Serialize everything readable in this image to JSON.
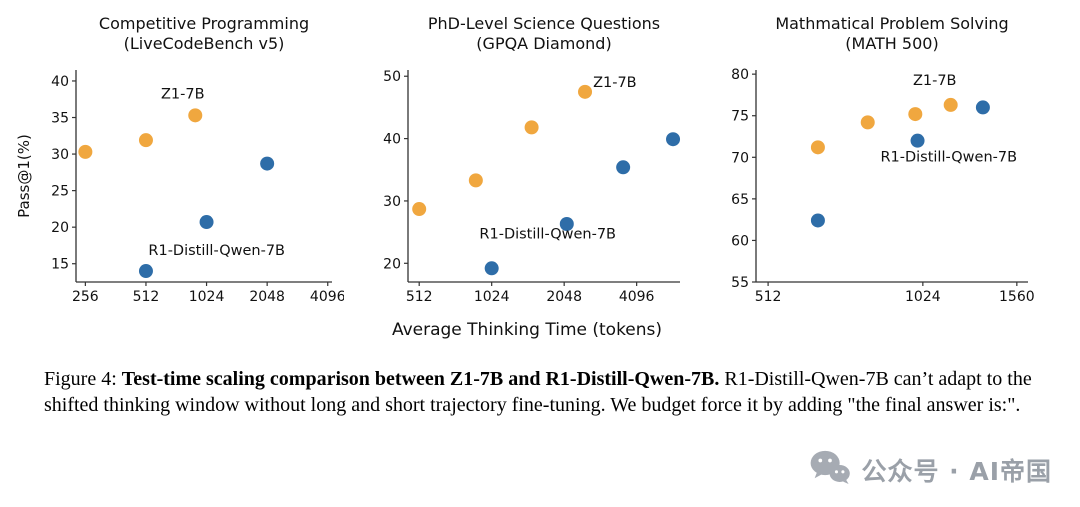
{
  "figure": {
    "xlabel": "Average Thinking Time (tokens)",
    "caption": {
      "label": "Figure 4:",
      "bold": "Test-time scaling comparison between Z1-7B and R1-Distill-Qwen-7B.",
      "rest": "R1-Distill-Qwen-7B can’t adapt to the shifted thinking window without long and short trajectory fine-tuning. We budget force it by adding \"the final answer is:\"."
    },
    "watermark": {
      "icon": "wechat-icon",
      "text": "公众号 · AI帝国"
    }
  },
  "colors": {
    "z1": "#F0A73F",
    "r1": "#2E6DA8",
    "axis": "#333333",
    "text": "#111111",
    "watermark": "#A6ABB3"
  },
  "chart_data": [
    {
      "type": "scatter",
      "title_lines": [
        "Competitive Programming",
        "(LiveCodeBench v5)"
      ],
      "ylabel": "Pass@1(%)",
      "xscale": "log2",
      "xlim": [
        230,
        4300
      ],
      "ylim": [
        12.5,
        41.5
      ],
      "xticks": [
        256,
        512,
        1024,
        2048,
        4096
      ],
      "yticks": [
        15,
        20,
        25,
        30,
        35,
        40
      ],
      "series": [
        {
          "name": "Z1-7B",
          "color_key": "z1",
          "points": [
            [
              256,
              30.3
            ],
            [
              512,
              31.9
            ],
            [
              900,
              35.3
            ]
          ]
        },
        {
          "name": "R1-Distill-Qwen-7B",
          "color_key": "r1",
          "points": [
            [
              512,
              14.0
            ],
            [
              1024,
              20.7
            ],
            [
              2048,
              28.7
            ]
          ]
        }
      ],
      "annotations": [
        {
          "text": "Z1-7B",
          "x": 780,
          "y": 37.6,
          "anchor": "middle"
        },
        {
          "text": "R1-Distill-Qwen-7B",
          "x": 1150,
          "y": 16.2,
          "anchor": "middle"
        }
      ]
    },
    {
      "type": "scatter",
      "title_lines": [
        "PhD-Level Science Questions",
        "(GPQA Diamond)"
      ],
      "ylabel": "",
      "xscale": "log2",
      "xlim": [
        460,
        6200
      ],
      "ylim": [
        17,
        51
      ],
      "xticks": [
        512,
        1024,
        2048,
        4096
      ],
      "yticks": [
        20,
        30,
        40,
        50
      ],
      "series": [
        {
          "name": "Z1-7B",
          "color_key": "z1",
          "points": [
            [
              512,
              28.7
            ],
            [
              880,
              33.3
            ],
            [
              1500,
              41.8
            ],
            [
              2500,
              47.5
            ]
          ]
        },
        {
          "name": "R1-Distill-Qwen-7B",
          "color_key": "r1",
          "points": [
            [
              1024,
              19.2
            ],
            [
              2100,
              26.3
            ],
            [
              3600,
              35.4
            ],
            [
              5800,
              39.9
            ]
          ]
        }
      ],
      "annotations": [
        {
          "text": "Z1-7B",
          "x": 2700,
          "y": 48.3,
          "anchor": "start"
        },
        {
          "text": "R1-Distill-Qwen-7B",
          "x": 1750,
          "y": 24.0,
          "anchor": "middle"
        }
      ]
    },
    {
      "type": "scatter",
      "title_lines": [
        "Mathmatical Problem Solving",
        "(MATH 500)"
      ],
      "ylabel": "",
      "xscale": "log2",
      "xlim": [
        485,
        1640
      ],
      "ylim": [
        55,
        80.5
      ],
      "xticks": [
        512,
        1024,
        1560
      ],
      "yticks": [
        55,
        60,
        65,
        70,
        75,
        80
      ],
      "series": [
        {
          "name": "Z1-7B",
          "color_key": "z1",
          "points": [
            [
              640,
              71.2
            ],
            [
              800,
              74.2
            ],
            [
              990,
              75.2
            ],
            [
              1160,
              76.3
            ]
          ]
        },
        {
          "name": "R1-Distill-Qwen-7B",
          "color_key": "r1",
          "points": [
            [
              640,
              62.4
            ],
            [
              1000,
              72.0
            ],
            [
              1340,
              76.0
            ]
          ]
        }
      ],
      "annotations": [
        {
          "text": "Z1-7B",
          "x": 1080,
          "y": 78.7,
          "anchor": "middle"
        },
        {
          "text": "R1-Distill-Qwen-7B",
          "x": 1150,
          "y": 69.5,
          "anchor": "middle"
        }
      ]
    }
  ]
}
